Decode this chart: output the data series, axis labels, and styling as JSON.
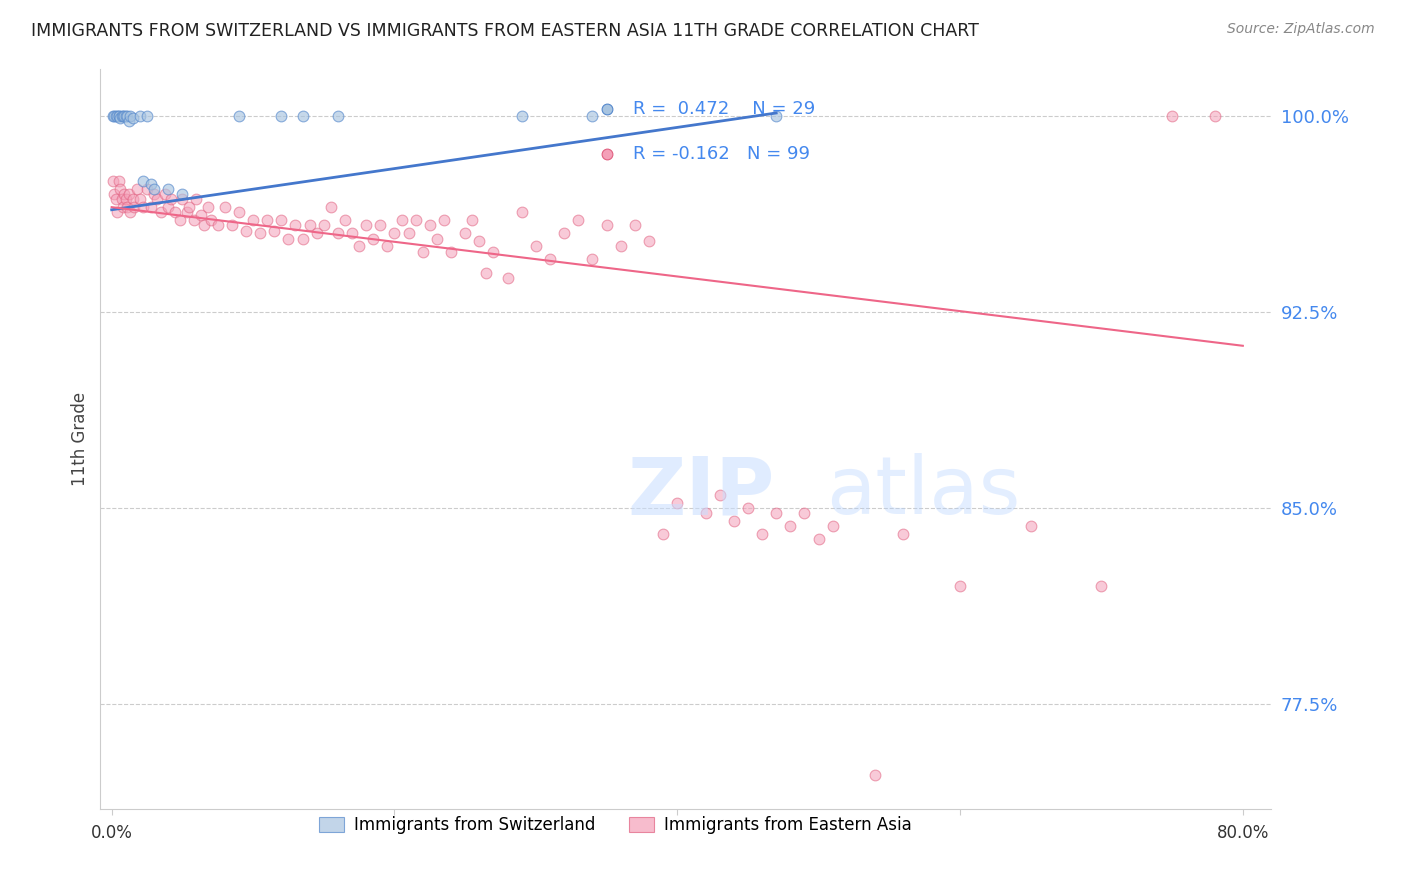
{
  "title": "IMMIGRANTS FROM SWITZERLAND VS IMMIGRANTS FROM EASTERN ASIA 11TH GRADE CORRELATION CHART",
  "source": "Source: ZipAtlas.com",
  "ylabel": "11th Grade",
  "ylim": [
    0.735,
    1.018
  ],
  "xlim": [
    -0.008,
    0.82
  ],
  "ytick_positions": [
    0.775,
    0.85,
    0.925,
    1.0
  ],
  "ytick_labels": [
    "77.5%",
    "85.0%",
    "92.5%",
    "100.0%"
  ],
  "legend_r_blue": "R =  0.472",
  "legend_n_blue": "N = 29",
  "legend_r_pink": "R = -0.162",
  "legend_n_pink": "N = 99",
  "blue_fill": "#A8C4E0",
  "blue_edge": "#5588CC",
  "pink_fill": "#F4A0B8",
  "pink_edge": "#E06080",
  "blue_line_color": "#4477CC",
  "pink_line_color": "#EE6688",
  "grid_color": "#CCCCCC",
  "right_axis_color": "#4488EE",
  "title_color": "#222222",
  "blue_line": [
    [
      0.0,
      0.964
    ],
    [
      0.47,
      1.001
    ]
  ],
  "pink_line": [
    [
      0.0,
      0.965
    ],
    [
      0.8,
      0.912
    ]
  ],
  "blue_scatter": [
    [
      0.001,
      1.0
    ],
    [
      0.002,
      1.0
    ],
    [
      0.003,
      1.0
    ],
    [
      0.004,
      1.0
    ],
    [
      0.005,
      1.0
    ],
    [
      0.005,
      1.0
    ],
    [
      0.006,
      0.999
    ],
    [
      0.007,
      1.0
    ],
    [
      0.008,
      1.0
    ],
    [
      0.009,
      1.0
    ],
    [
      0.01,
      1.0
    ],
    [
      0.011,
      1.0
    ],
    [
      0.012,
      0.998
    ],
    [
      0.013,
      1.0
    ],
    [
      0.015,
      0.999
    ],
    [
      0.02,
      1.0
    ],
    [
      0.022,
      0.975
    ],
    [
      0.025,
      1.0
    ],
    [
      0.028,
      0.974
    ],
    [
      0.03,
      0.972
    ],
    [
      0.04,
      0.972
    ],
    [
      0.05,
      0.97
    ],
    [
      0.09,
      1.0
    ],
    [
      0.12,
      1.0
    ],
    [
      0.135,
      1.0
    ],
    [
      0.16,
      1.0
    ],
    [
      0.29,
      1.0
    ],
    [
      0.34,
      1.0
    ],
    [
      0.47,
      1.0
    ]
  ],
  "pink_scatter": [
    [
      0.001,
      0.975
    ],
    [
      0.002,
      0.97
    ],
    [
      0.003,
      0.968
    ],
    [
      0.004,
      0.963
    ],
    [
      0.005,
      0.975
    ],
    [
      0.006,
      0.972
    ],
    [
      0.007,
      0.968
    ],
    [
      0.008,
      0.965
    ],
    [
      0.009,
      0.97
    ],
    [
      0.01,
      0.968
    ],
    [
      0.011,
      0.965
    ],
    [
      0.012,
      0.97
    ],
    [
      0.013,
      0.963
    ],
    [
      0.015,
      0.968
    ],
    [
      0.016,
      0.965
    ],
    [
      0.018,
      0.972
    ],
    [
      0.02,
      0.968
    ],
    [
      0.022,
      0.965
    ],
    [
      0.025,
      0.972
    ],
    [
      0.028,
      0.965
    ],
    [
      0.03,
      0.97
    ],
    [
      0.032,
      0.968
    ],
    [
      0.035,
      0.963
    ],
    [
      0.038,
      0.97
    ],
    [
      0.04,
      0.965
    ],
    [
      0.042,
      0.968
    ],
    [
      0.045,
      0.963
    ],
    [
      0.048,
      0.96
    ],
    [
      0.05,
      0.968
    ],
    [
      0.053,
      0.963
    ],
    [
      0.055,
      0.965
    ],
    [
      0.058,
      0.96
    ],
    [
      0.06,
      0.968
    ],
    [
      0.063,
      0.962
    ],
    [
      0.065,
      0.958
    ],
    [
      0.068,
      0.965
    ],
    [
      0.07,
      0.96
    ],
    [
      0.075,
      0.958
    ],
    [
      0.08,
      0.965
    ],
    [
      0.085,
      0.958
    ],
    [
      0.09,
      0.963
    ],
    [
      0.095,
      0.956
    ],
    [
      0.1,
      0.96
    ],
    [
      0.105,
      0.955
    ],
    [
      0.11,
      0.96
    ],
    [
      0.115,
      0.956
    ],
    [
      0.12,
      0.96
    ],
    [
      0.125,
      0.953
    ],
    [
      0.13,
      0.958
    ],
    [
      0.135,
      0.953
    ],
    [
      0.14,
      0.958
    ],
    [
      0.145,
      0.955
    ],
    [
      0.15,
      0.958
    ],
    [
      0.155,
      0.965
    ],
    [
      0.16,
      0.955
    ],
    [
      0.165,
      0.96
    ],
    [
      0.17,
      0.955
    ],
    [
      0.175,
      0.95
    ],
    [
      0.18,
      0.958
    ],
    [
      0.185,
      0.953
    ],
    [
      0.19,
      0.958
    ],
    [
      0.195,
      0.95
    ],
    [
      0.2,
      0.955
    ],
    [
      0.205,
      0.96
    ],
    [
      0.21,
      0.955
    ],
    [
      0.215,
      0.96
    ],
    [
      0.22,
      0.948
    ],
    [
      0.225,
      0.958
    ],
    [
      0.23,
      0.953
    ],
    [
      0.235,
      0.96
    ],
    [
      0.24,
      0.948
    ],
    [
      0.25,
      0.955
    ],
    [
      0.255,
      0.96
    ],
    [
      0.26,
      0.952
    ],
    [
      0.265,
      0.94
    ],
    [
      0.27,
      0.948
    ],
    [
      0.28,
      0.938
    ],
    [
      0.29,
      0.963
    ],
    [
      0.3,
      0.95
    ],
    [
      0.31,
      0.945
    ],
    [
      0.32,
      0.955
    ],
    [
      0.33,
      0.96
    ],
    [
      0.34,
      0.945
    ],
    [
      0.35,
      0.958
    ],
    [
      0.36,
      0.95
    ],
    [
      0.37,
      0.958
    ],
    [
      0.38,
      0.952
    ],
    [
      0.39,
      0.84
    ],
    [
      0.4,
      0.852
    ],
    [
      0.42,
      0.848
    ],
    [
      0.43,
      0.855
    ],
    [
      0.44,
      0.845
    ],
    [
      0.45,
      0.85
    ],
    [
      0.46,
      0.84
    ],
    [
      0.47,
      0.848
    ],
    [
      0.48,
      0.843
    ],
    [
      0.49,
      0.848
    ],
    [
      0.5,
      0.838
    ],
    [
      0.51,
      0.843
    ],
    [
      0.54,
      0.748
    ],
    [
      0.56,
      0.84
    ],
    [
      0.6,
      0.82
    ],
    [
      0.65,
      0.843
    ],
    [
      0.7,
      0.82
    ],
    [
      0.75,
      1.0
    ],
    [
      0.78,
      1.0
    ]
  ],
  "marker_size": 60
}
